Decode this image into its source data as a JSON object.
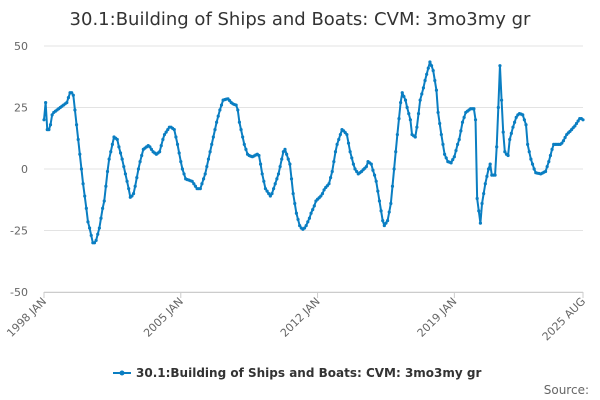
{
  "chart_data": {
    "type": "line",
    "title": "30.1:Building of Ships and Boats: CVM: 3mo3my gr",
    "xlabel": "",
    "ylabel": "",
    "ylim": [
      -50,
      50
    ],
    "yticks": [
      50,
      25,
      0,
      -25,
      -50
    ],
    "ytick_labels": [
      "50",
      "25",
      "0",
      "-25",
      "-50"
    ],
    "x_start": "1998 JAN",
    "x_end": "2025 AUG",
    "x_frequency": "monthly",
    "xtick_labels": [
      {
        "label": "1998 JAN",
        "month_index": 0
      },
      {
        "label": "2005 JAN",
        "month_index": 84
      },
      {
        "label": "2012 JAN",
        "month_index": 168
      },
      {
        "label": "2019 JAN",
        "month_index": 252
      },
      {
        "label": "2025 AUG",
        "month_index": 331
      }
    ],
    "grid": true,
    "legend_position": "bottom-center",
    "series": [
      {
        "name": "30.1:Building of Ships and Boats: CVM: 3mo3my gr",
        "color": "#0a7ec2",
        "values": [
          20,
          27,
          16,
          16,
          18,
          22,
          23,
          23.5,
          24,
          24.5,
          25,
          25.5,
          26,
          26.5,
          27,
          29,
          31,
          31,
          30,
          24,
          18,
          12,
          6,
          0,
          -6,
          -11,
          -16,
          -21.5,
          -24,
          -27,
          -30,
          -30,
          -29,
          -26.5,
          -24,
          -20,
          -16,
          -13,
          -7,
          -1,
          4,
          7,
          10,
          13,
          12.5,
          12,
          9,
          6.5,
          4,
          1,
          -2,
          -5,
          -8,
          -11.5,
          -11,
          -10,
          -7,
          -3.5,
          0,
          3,
          5.5,
          8,
          8.5,
          9,
          9.5,
          9,
          8,
          7,
          6.5,
          6,
          6.5,
          7,
          9.5,
          12,
          14,
          15,
          16,
          17,
          17,
          16.5,
          16,
          13,
          10,
          6.5,
          3,
          0,
          -2,
          -4,
          -4.3,
          -4.5,
          -4.8,
          -5,
          -6,
          -7,
          -8,
          -8,
          -8,
          -6,
          -4,
          -2,
          1,
          4,
          7,
          10,
          13,
          16,
          19,
          21.5,
          24,
          26,
          28,
          28.2,
          28.4,
          28.5,
          27.8,
          27,
          26.5,
          26.2,
          26,
          24,
          19,
          16,
          13,
          10,
          8,
          6,
          5.5,
          5.2,
          5,
          5.3,
          5.7,
          6,
          5.5,
          2,
          -2,
          -5,
          -8,
          -9,
          -10,
          -11,
          -10,
          -8,
          -6,
          -4,
          -2,
          1,
          4,
          7,
          8,
          6,
          4,
          2,
          -4,
          -10,
          -14,
          -18,
          -20.5,
          -23,
          -24,
          -24.5,
          -24,
          -23,
          -21.5,
          -20,
          -18,
          -16.5,
          -15,
          -13,
          -12.3,
          -11.7,
          -11,
          -10,
          -8.5,
          -7.5,
          -6.8,
          -6,
          -3.5,
          -1,
          3,
          7,
          10,
          12,
          14,
          16,
          15.5,
          14.8,
          14,
          10.5,
          7,
          4.5,
          2,
          0,
          -1,
          -2,
          -1.5,
          -1,
          -0.3,
          0.3,
          1,
          3,
          2.5,
          2,
          -0.5,
          -2.5,
          -5,
          -9,
          -13,
          -17,
          -21,
          -23,
          -22,
          -21,
          -17.5,
          -14,
          -7,
          0,
          7,
          14,
          20.5,
          27,
          31,
          29.5,
          28,
          25,
          22.5,
          20,
          14,
          13.5,
          13,
          17,
          22.5,
          28,
          30.5,
          33,
          36,
          38.5,
          41,
          43.5,
          42,
          40,
          36,
          32,
          23,
          18.5,
          14,
          10,
          6,
          4.5,
          3,
          2.8,
          2.5,
          3.8,
          5,
          7.5,
          10,
          12,
          15.5,
          19,
          21,
          23,
          23.5,
          24,
          24.5,
          24.5,
          24.5,
          20,
          -12,
          -17,
          -22,
          -14,
          -10,
          -6,
          -3,
          0,
          2,
          -2.5,
          -2.5,
          -2.5,
          9,
          25,
          42,
          28,
          15,
          7,
          6,
          5.5,
          12,
          14.5,
          17,
          19,
          21,
          22,
          22.5,
          22.3,
          22,
          20,
          18,
          10,
          7,
          4,
          2,
          0,
          -1.5,
          -1.7,
          -1.8,
          -2,
          -1.7,
          -1.3,
          -1,
          1,
          3,
          5.5,
          8,
          10,
          10,
          10,
          10,
          10,
          10.5,
          11.5,
          12.8,
          14,
          14.7,
          15.3,
          16,
          16.8,
          17.5,
          18.5,
          19.5,
          20.5,
          20.5,
          20
        ]
      }
    ],
    "source_label": "Source:"
  }
}
